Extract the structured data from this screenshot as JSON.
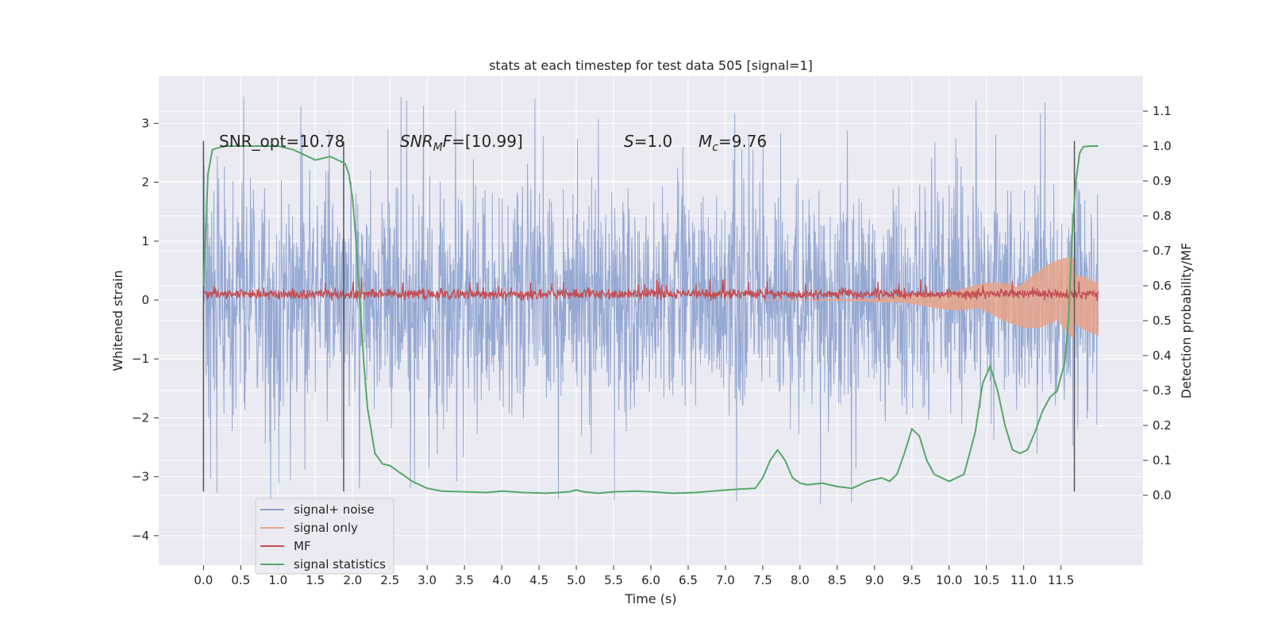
{
  "chart_data": {
    "type": "line",
    "title": "stats at each timestep for test data 505 [signal=1]",
    "xlabel": "Time (s)",
    "ylabel": "Whitened strain",
    "ylabel_right": "Detection probability/MF",
    "xlim": [
      -0.6,
      12.6
    ],
    "ylim": [
      -4.5,
      3.8
    ],
    "ylim_right": [
      -0.2,
      1.2
    ],
    "x_ticks": [
      "0.0",
      "0.5",
      "1.0",
      "1.5",
      "2.0",
      "2.5",
      "3.0",
      "3.5",
      "4.0",
      "4.5",
      "5.0",
      "5.5",
      "6.0",
      "6.5",
      "7.0",
      "7.5",
      "8.0",
      "8.5",
      "9.0",
      "9.5",
      "10.0",
      "10.5",
      "11.0",
      "11.5"
    ],
    "y_ticks": [
      "−4",
      "−3",
      "−2",
      "−1",
      "0",
      "1",
      "2",
      "3"
    ],
    "y_ticks_right": [
      "0.0",
      "0.1",
      "0.2",
      "0.3",
      "0.4",
      "0.5",
      "0.6",
      "0.7",
      "0.8",
      "0.9",
      "1.0",
      "1.1"
    ],
    "grid": true,
    "legend_position": "lower-left",
    "annotations": {
      "snr_opt": "SNR_opt=10.78",
      "snr_mf_italic": "SNR",
      "snr_mf_sub": "M",
      "snr_mf_f": "F",
      "snr_mf_rest": "=[10.99]",
      "s_italic": "S",
      "s_rest": "=1.0",
      "mc_italic": "M",
      "mc_sub": "c",
      "mc_rest": "=9.76"
    },
    "vertical_lines": [
      0.0,
      1.88,
      11.68
    ],
    "series": [
      {
        "name": "signal+ noise",
        "color": "#8da2cf",
        "x_range": [
          0.0,
          12.0
        ],
        "envelope_upper": 2.1,
        "envelope_lower": -2.2,
        "spike_max": 3.5,
        "spike_min": -4.1
      },
      {
        "name": "signal only",
        "color": "#e8a48a",
        "x_range": [
          7.5,
          12.0
        ],
        "amplitude_end": 1.0
      },
      {
        "name": "MF",
        "color": "#c44e52",
        "x_range": [
          0.0,
          12.0
        ],
        "mean": 0.1,
        "spread": 0.1
      },
      {
        "name": "signal statistics",
        "color": "#55a868",
        "axis": "right",
        "x": [
          0.0,
          0.06,
          0.12,
          0.2,
          0.3,
          0.5,
          0.8,
          1.0,
          1.2,
          1.3,
          1.5,
          1.7,
          1.8,
          1.9,
          1.95,
          2.0,
          2.05,
          2.1,
          2.15,
          2.2,
          2.3,
          2.4,
          2.5,
          2.6,
          2.8,
          3.0,
          3.2,
          3.5,
          3.8,
          4.0,
          4.3,
          4.6,
          4.9,
          5.0,
          5.1,
          5.3,
          5.5,
          5.8,
          6.0,
          6.3,
          6.6,
          7.0,
          7.2,
          7.4,
          7.5,
          7.6,
          7.7,
          7.8,
          7.9,
          8.0,
          8.1,
          8.3,
          8.5,
          8.7,
          8.9,
          9.0,
          9.1,
          9.2,
          9.3,
          9.4,
          9.5,
          9.6,
          9.7,
          9.8,
          10.0,
          10.2,
          10.35,
          10.45,
          10.55,
          10.65,
          10.75,
          10.85,
          10.95,
          11.05,
          11.15,
          11.25,
          11.35,
          11.45,
          11.55,
          11.6,
          11.65,
          11.7,
          11.75,
          11.8,
          11.9,
          12.0
        ],
        "y": [
          0.6,
          0.92,
          0.99,
          0.995,
          1.0,
          1.0,
          1.0,
          1.0,
          0.99,
          0.98,
          0.96,
          0.97,
          0.96,
          0.95,
          0.92,
          0.85,
          0.72,
          0.55,
          0.38,
          0.25,
          0.12,
          0.09,
          0.085,
          0.07,
          0.04,
          0.02,
          0.012,
          0.01,
          0.008,
          0.012,
          0.008,
          0.006,
          0.01,
          0.015,
          0.01,
          0.006,
          0.01,
          0.012,
          0.01,
          0.006,
          0.008,
          0.015,
          0.018,
          0.02,
          0.05,
          0.1,
          0.13,
          0.1,
          0.05,
          0.035,
          0.03,
          0.035,
          0.025,
          0.02,
          0.04,
          0.045,
          0.05,
          0.04,
          0.06,
          0.12,
          0.19,
          0.17,
          0.1,
          0.06,
          0.04,
          0.06,
          0.18,
          0.32,
          0.37,
          0.3,
          0.2,
          0.13,
          0.12,
          0.13,
          0.18,
          0.24,
          0.28,
          0.3,
          0.38,
          0.5,
          0.75,
          0.9,
          0.98,
          0.998,
          1.0,
          1.0
        ]
      }
    ]
  }
}
